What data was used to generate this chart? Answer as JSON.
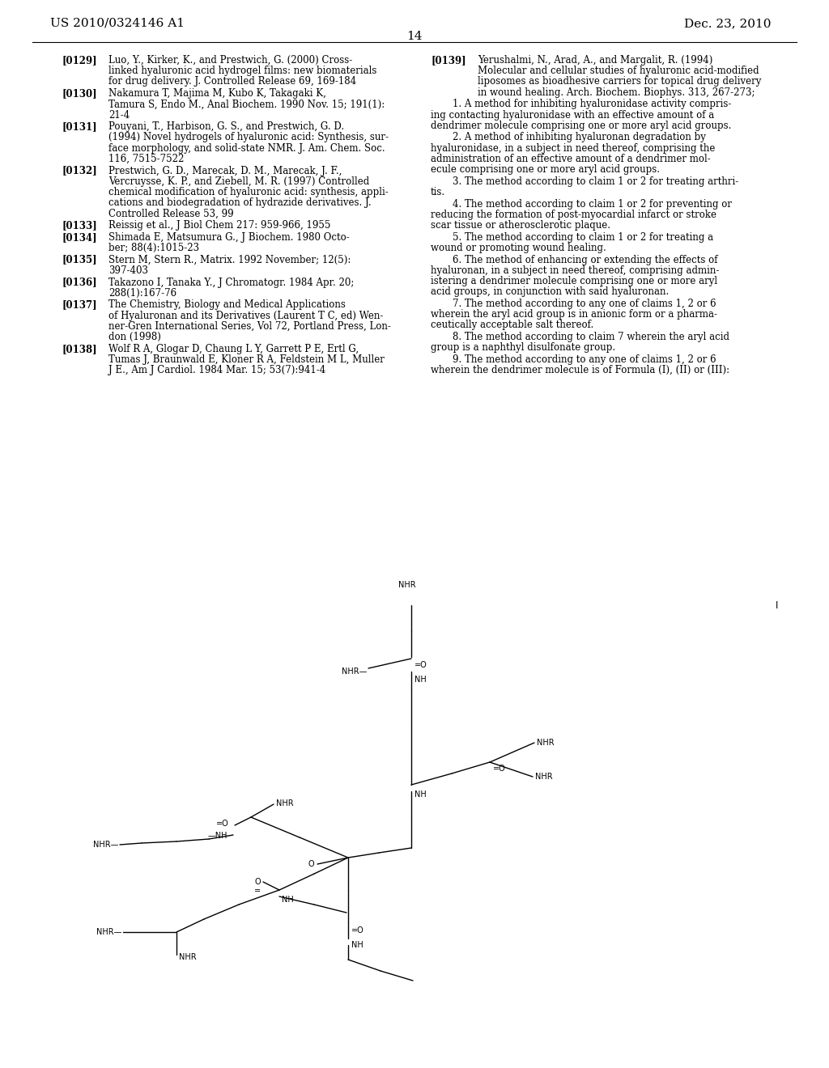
{
  "background_color": "#ffffff",
  "header_left": "US 2010/0324146 A1",
  "header_right": "Dec. 23, 2010",
  "page_number": "14",
  "refs_left": [
    {
      "tag": "[0129]",
      "lines": [
        [
          "normal",
          "Luo, Y., Kirker, K., and Prestwich, G. (2000) Cross-"
        ],
        [
          "normal",
          "linked hyaluronic acid hydrogel films: new biomaterials"
        ],
        [
          "normal",
          "for drug delivery. "
        ],
        [
          "italic",
          "J. Controlled Release"
        ],
        [
          "normal",
          " 69, 169-184"
        ]
      ],
      "wrapped": [
        "Luo, Y., Kirker, K., and Prestwich, G. (2000) Cross-",
        "linked hyaluronic acid hydrogel films: new biomaterials",
        "for drug delivery. J. Controlled Release 69, 169-184"
      ]
    },
    {
      "tag": "[0130]",
      "wrapped": [
        "Nakamura T, Majima M, Kubo K, Takagaki K,",
        "Tamura S, Endo M., Anal Biochem. 1990 Nov. 15; 191(1):",
        "21-4"
      ]
    },
    {
      "tag": "[0131]",
      "wrapped": [
        "Pouyani, T., Harbison, G. S., and Prestwich, G. D.",
        "(1994) Novel hydrogels of hyaluronic acid: Synthesis, sur-",
        "face morphology, and solid-state NMR. J. Am. Chem. Soc.",
        "116, 7515-7522"
      ]
    },
    {
      "tag": "[0132]",
      "wrapped": [
        "Prestwich, G. D., Marecak, D. M., Marecak, J. F.,",
        "Vercruysse, K. P., and Ziebell, M. R. (1997) Controlled",
        "chemical modification of hyaluronic acid: synthesis, appli-",
        "cations and biodegradation of hydrazide derivatives. J.",
        "Controlled Release 53, 99"
      ]
    },
    {
      "tag": "[0133]",
      "wrapped": [
        "Reissig et al., J Biol Chem 217: 959-966, 1955"
      ]
    },
    {
      "tag": "[0134]",
      "wrapped": [
        "Shimada E, Matsumura G., J Biochem. 1980 Octo-",
        "ber; 88(4):1015-23"
      ]
    },
    {
      "tag": "[0135]",
      "wrapped": [
        "Stern M, Stern R., Matrix. 1992 November; 12(5):",
        "397-403"
      ]
    },
    {
      "tag": "[0136]",
      "wrapped": [
        "Takazono I, Tanaka Y., J Chromatogr. 1984 Apr. 20;",
        "288(1):167-76"
      ]
    },
    {
      "tag": "[0137]",
      "wrapped": [
        "The Chemistry, Biology and Medical Applications",
        "of Hyaluronan and its Derivatives (Laurent T C, ed) Wen-",
        "ner-Gren International Series, Vol 72, Portland Press, Lon-",
        "don (1998)"
      ]
    },
    {
      "tag": "[0138]",
      "wrapped": [
        "Wolf R A, Glogar D, Chaung L Y, Garrett P E, Ertl G,",
        "Tumas J, Braunwald E, Kloner R A, Feldstein M L, Muller",
        "J E., Am J Cardiol. 1984 Mar. 15; 53(7):941-4"
      ]
    }
  ],
  "ref139_lines": [
    "Yerushalmi, N., Arad, A., and Margalit, R. (1994)",
    "Molecular and cellular studies of hyaluronic acid-modified",
    "liposomes as bioadhesive carriers for topical drug delivery",
    "in wound healing. Arch. Biochem. Biophys. 313, 267-273;"
  ],
  "claims": [
    {
      "num": "1",
      "lines": [
        "A method for inhibiting hyaluronidase activity compris-",
        "ing contacting hyaluronidase with an effective amount of a",
        "dendrimer molecule comprising one or more aryl acid groups."
      ]
    },
    {
      "num": "2",
      "lines": [
        "A method of inhibiting hyaluronan degradation by",
        "hyaluronidase, in a subject in need thereof, comprising the",
        "administration of an effective amount of a dendrimer mol-",
        "ecule comprising one or more aryl acid groups."
      ]
    },
    {
      "num": "3",
      "lines": [
        "The method according to claim 1 or 2 for treating arthri-",
        "tis."
      ]
    },
    {
      "num": "4",
      "lines": [
        "The method according to claim 1 or 2 for preventing or",
        "reducing the formation of post-myocardial infarct or stroke",
        "scar tissue or atherosclerotic plaque."
      ]
    },
    {
      "num": "5",
      "lines": [
        "The method according to claim 1 or 2 for treating a",
        "wound or promoting wound healing."
      ]
    },
    {
      "num": "6",
      "lines": [
        "The method of enhancing or extending the effects of",
        "hyaluronan, in a subject in need thereof, comprising admin-",
        "istering a dendrimer molecule comprising one or more aryl",
        "acid groups, in conjunction with said hyaluronan."
      ]
    },
    {
      "num": "7",
      "lines": [
        "The method according to any one of claims 1, 2 or 6",
        "wherein the aryl acid group is in anionic form or a pharma-",
        "ceutically acceptable salt thereof."
      ]
    },
    {
      "num": "8",
      "lines": [
        "The method according to claim 7 wherein the aryl acid",
        "group is a naphthyl disulfonate group."
      ]
    },
    {
      "num": "9",
      "lines": [
        "The method according to any one of claims 1, 2 or 6",
        "wherein the dendrimer molecule is of Formula (I), (II) or (III):"
      ]
    }
  ]
}
